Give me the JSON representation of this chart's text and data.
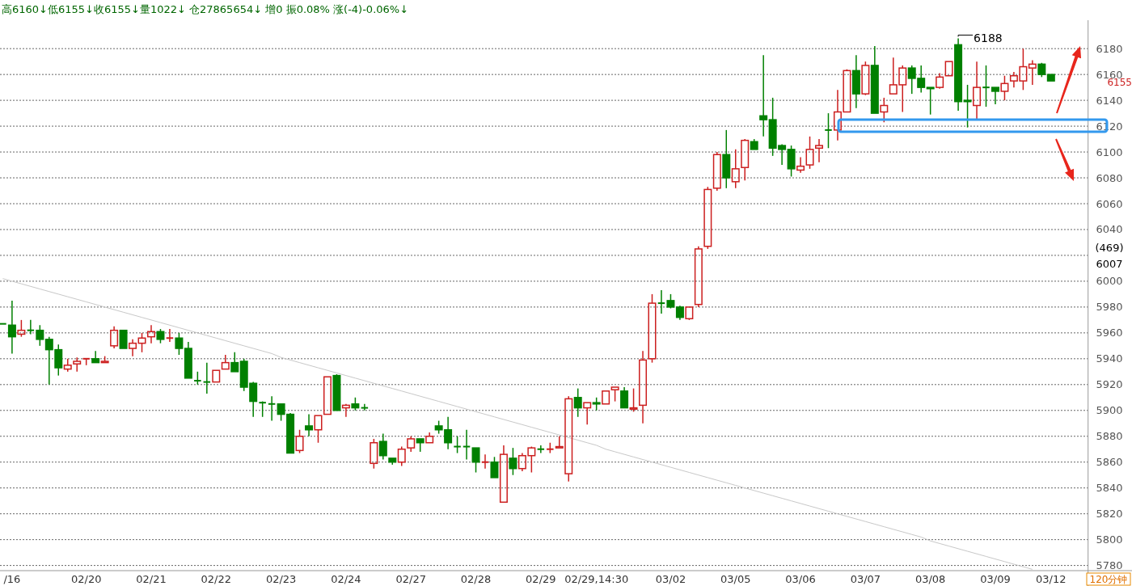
{
  "chart_data": {
    "type": "candlestick",
    "title": "高6160↓低6155↓收6155↓量1022↓ 仓27865654↓ 增0 振0.08% 涨(-4)-0.06%↓",
    "categories": [
      null,
      "/16",
      null,
      null,
      null,
      null,
      null,
      null,
      null,
      "02/20",
      null,
      null,
      null,
      null,
      null,
      null,
      "02/21",
      null,
      null,
      null,
      null,
      null,
      null,
      "02/22",
      null,
      null,
      null,
      null,
      null,
      null,
      "02/23",
      null,
      null,
      null,
      null,
      null,
      null,
      "02/24",
      null,
      null,
      null,
      null,
      null,
      null,
      "02/27",
      null,
      null,
      null,
      null,
      null,
      null,
      "02/28",
      null,
      null,
      null,
      null,
      null,
      null,
      "02/29",
      null,
      null,
      null,
      null,
      null,
      "02/29,14:30",
      null,
      null,
      null,
      null,
      null,
      null,
      null,
      "03/02",
      null,
      null,
      null,
      null,
      null,
      null,
      "03/05",
      null,
      null,
      null,
      null,
      null,
      null,
      "03/06",
      null,
      null,
      null,
      null,
      null,
      null,
      "03/07",
      null,
      null,
      null,
      null,
      null,
      null,
      "03/08",
      null,
      null,
      null,
      null,
      null,
      null,
      "03/09",
      null,
      null,
      null,
      null,
      null,
      "03/12"
    ],
    "ohlc": [
      [
        5967,
        5967,
        5967,
        5967
      ],
      [
        5966,
        5985,
        5944,
        5957
      ],
      [
        5959,
        5970,
        5957,
        5962
      ],
      [
        5962,
        5970,
        5959,
        5962
      ],
      [
        5962,
        5966,
        5950,
        5955
      ],
      [
        5955,
        5957,
        5920,
        5947
      ],
      [
        5947,
        5951,
        5927,
        5933
      ],
      [
        5932,
        5940,
        5930,
        5935
      ],
      [
        5936,
        5941,
        5930,
        5938
      ],
      [
        5940,
        5940,
        5935,
        5940
      ],
      [
        5940,
        5946,
        5937,
        5937
      ],
      [
        5937,
        5942,
        5937,
        5938
      ],
      [
        5950,
        5965,
        5948,
        5962
      ],
      [
        5962,
        5962,
        5948,
        5948
      ],
      [
        5948,
        5955,
        5942,
        5952
      ],
      [
        5952,
        5960,
        5945,
        5956
      ],
      [
        5957,
        5966,
        5952,
        5961
      ],
      [
        5961,
        5963,
        5952,
        5955
      ],
      [
        5956,
        5963,
        5953,
        5956
      ],
      [
        5956,
        5960,
        5943,
        5948
      ],
      [
        5948,
        5953,
        5925,
        5925
      ],
      [
        5923,
        5930,
        5920,
        5923
      ],
      [
        5922,
        5937,
        5913,
        5922
      ],
      [
        5922,
        5931,
        5922,
        5931
      ],
      [
        5932,
        5943,
        5932,
        5937
      ],
      [
        5937,
        5945,
        5930,
        5930
      ],
      [
        5938,
        5940,
        5915,
        5918
      ],
      [
        5921,
        5922,
        5895,
        5907
      ],
      [
        5906,
        5907,
        5895,
        5906
      ],
      [
        5905,
        5911,
        5892,
        5905
      ],
      [
        5905,
        5905,
        5892,
        5897
      ],
      [
        5897,
        5898,
        5867,
        5867
      ],
      [
        5869,
        5885,
        5867,
        5880
      ],
      [
        5888,
        5897,
        5880,
        5885
      ],
      [
        5885,
        5896,
        5875,
        5896
      ],
      [
        5897,
        5926,
        5897,
        5926
      ],
      [
        5927,
        5928,
        5900,
        5900
      ],
      [
        5902,
        5905,
        5895,
        5904
      ],
      [
        5905,
        5910,
        5900,
        5902
      ],
      [
        5902,
        5905,
        5900,
        5902
      ],
      [
        5859,
        5878,
        5855,
        5875
      ],
      [
        5876,
        5882,
        5862,
        5865
      ],
      [
        5863,
        5863,
        5858,
        5860
      ],
      [
        5860,
        5872,
        5857,
        5870
      ],
      [
        5871,
        5880,
        5868,
        5878
      ],
      [
        5878,
        5878,
        5868,
        5875
      ],
      [
        5875,
        5883,
        5875,
        5880
      ],
      [
        5888,
        5892,
        5882,
        5885
      ],
      [
        5885,
        5895,
        5870,
        5875
      ],
      [
        5872,
        5880,
        5867,
        5872
      ],
      [
        5872,
        5885,
        5862,
        5872
      ],
      [
        5871,
        5871,
        5852,
        5860
      ],
      [
        5860,
        5866,
        5855,
        5860
      ],
      [
        5860,
        5864,
        5848,
        5848
      ],
      [
        5829,
        5873,
        5829,
        5866
      ],
      [
        5863,
        5871,
        5850,
        5855
      ],
      [
        5855,
        5867,
        5853,
        5865
      ],
      [
        5865,
        5872,
        5852,
        5871
      ],
      [
        5870,
        5873,
        5867,
        5870
      ],
      [
        5870,
        5875,
        5867,
        5870
      ],
      [
        5871,
        5880,
        5871,
        5872
      ],
      [
        5851,
        5911,
        5845,
        5909
      ],
      [
        5910,
        5917,
        5895,
        5902
      ],
      [
        5902,
        5906,
        5889,
        5906
      ],
      [
        5906,
        5910,
        5900,
        5905
      ],
      [
        5905,
        5915,
        5905,
        5915
      ],
      [
        5916,
        5918,
        5907,
        5918
      ],
      [
        5915,
        5918,
        5902,
        5902
      ],
      [
        5901,
        5917,
        5899,
        5902
      ],
      [
        5904,
        5946,
        5890,
        5939
      ],
      [
        5940,
        5990,
        5937,
        5983
      ],
      [
        5983,
        5993,
        5975,
        5983
      ],
      [
        5985,
        5990,
        5979,
        5980
      ],
      [
        5980,
        5981,
        5970,
        5972
      ],
      [
        5971,
        5980,
        5970,
        5980
      ],
      [
        5982,
        6027,
        5980,
        6025
      ],
      [
        6027,
        6073,
        6025,
        6071
      ],
      [
        6072,
        6100,
        6070,
        6098
      ],
      [
        6098,
        6117,
        6072,
        6080
      ],
      [
        6077,
        6102,
        6072,
        6087
      ],
      [
        6088,
        6110,
        6078,
        6109
      ],
      [
        6108,
        6110,
        6102,
        6102
      ],
      [
        6128,
        6175,
        6112,
        6125
      ],
      [
        6125,
        6142,
        6097,
        6103
      ],
      [
        6105,
        6106,
        6090,
        6102
      ],
      [
        6102,
        6105,
        6081,
        6087
      ],
      [
        6086,
        6096,
        6084,
        6089
      ],
      [
        6090,
        6112,
        6087,
        6102
      ],
      [
        6103,
        6110,
        6092,
        6105
      ],
      [
        6117,
        6130,
        6103,
        6117
      ],
      [
        6117,
        6148,
        6109,
        6131
      ],
      [
        6131,
        6164,
        6131,
        6163
      ],
      [
        6163,
        6175,
        6134,
        6145
      ],
      [
        6145,
        6170,
        6144,
        6167
      ],
      [
        6167,
        6182,
        6130,
        6130
      ],
      [
        6131,
        6142,
        6123,
        6136
      ],
      [
        6145,
        6173,
        6145,
        6152
      ],
      [
        6152,
        6167,
        6131,
        6165
      ],
      [
        6165,
        6167,
        6145,
        6157
      ],
      [
        6157,
        6167,
        6146,
        6150
      ],
      [
        6150,
        6150,
        6129,
        6149
      ],
      [
        6150,
        6161,
        6149,
        6158
      ],
      [
        6159,
        6170,
        6159,
        6170
      ],
      [
        6183,
        6188,
        6132,
        6139
      ],
      [
        6140,
        6152,
        6119,
        6139
      ],
      [
        6136,
        6170,
        6125,
        6150
      ],
      [
        6150,
        6167,
        6135,
        6150
      ],
      [
        6150,
        6150,
        6137,
        6147
      ],
      [
        6147,
        6159,
        6140,
        6153
      ],
      [
        6155,
        6162,
        6150,
        6159
      ],
      [
        6155,
        6180,
        6148,
        6166
      ],
      [
        6165,
        6171,
        6152,
        6168
      ],
      [
        6168,
        6169,
        6158,
        6160
      ],
      [
        6160,
        6160,
        6155,
        6155
      ]
    ],
    "colors": [
      "#008000",
      "#008000",
      "#cc1f1f",
      "#008000",
      "#008000",
      "#008000",
      "#008000",
      "#cc1f1f",
      "#cc1f1f",
      "#cc1f1f",
      "#008000",
      "#cc1f1f",
      "#cc1f1f",
      "#008000",
      "#cc1f1f",
      "#cc1f1f",
      "#cc1f1f",
      "#008000",
      "#cc1f1f",
      "#008000",
      "#008000",
      "#008000",
      "#008000",
      "#cc1f1f",
      "#cc1f1f",
      "#008000",
      "#008000",
      "#008000",
      "#008000",
      "#008000",
      "#008000",
      "#008000",
      "#cc1f1f",
      "#008000",
      "#cc1f1f",
      "#cc1f1f",
      "#008000",
      "#cc1f1f",
      "#008000",
      "#008000",
      "#cc1f1f",
      "#008000",
      "#008000",
      "#cc1f1f",
      "#cc1f1f",
      "#008000",
      "#cc1f1f",
      "#008000",
      "#008000",
      "#008000",
      "#008000",
      "#008000",
      "#cc1f1f",
      "#008000",
      "#cc1f1f",
      "#008000",
      "#cc1f1f",
      "#cc1f1f",
      "#008000",
      "#cc1f1f",
      "#cc1f1f",
      "#cc1f1f",
      "#008000",
      "#cc1f1f",
      "#008000",
      "#cc1f1f",
      "#cc1f1f",
      "#008000",
      "#cc1f1f",
      "#cc1f1f",
      "#cc1f1f",
      "#008000",
      "#008000",
      "#008000",
      "#cc1f1f",
      "#cc1f1f",
      "#cc1f1f",
      "#cc1f1f",
      "#008000",
      "#cc1f1f",
      "#cc1f1f",
      "#008000",
      "#008000",
      "#008000",
      "#008000",
      "#008000",
      "#cc1f1f",
      "#cc1f1f",
      "#cc1f1f",
      "#008000",
      "#cc1f1f",
      "#cc1f1f",
      "#008000",
      "#cc1f1f",
      "#008000",
      "#cc1f1f",
      "#cc1f1f",
      "#cc1f1f",
      "#008000",
      "#008000",
      "#008000",
      "#cc1f1f",
      "#cc1f1f",
      "#008000",
      "#008000",
      "#cc1f1f",
      "#008000",
      "#008000",
      "#cc1f1f",
      "#cc1f1f",
      "#cc1f1f",
      "#cc1f1f",
      "#008000",
      "#008000"
    ],
    "series": [
      {
        "type": "line",
        "color": "#c8c8c8",
        "values": [
          6002,
          6000,
          5998,
          5996,
          5994,
          5992,
          5990,
          5988,
          5986,
          5984,
          5982,
          5980,
          5978,
          5976,
          5974,
          5972,
          5970,
          5968,
          5966,
          5964,
          5962,
          5960,
          5958,
          5956,
          5954,
          5952,
          5950,
          5948,
          5946,
          5944,
          5941,
          5939,
          5937,
          5935,
          5933,
          5931,
          5929,
          5927,
          5925,
          5923,
          5921,
          5919,
          5917,
          5915,
          5913,
          5911,
          5909,
          5907,
          5905,
          5903,
          5901,
          5899,
          5897,
          5895,
          5893,
          5891,
          5889,
          5887,
          5885,
          5883,
          5881,
          5879,
          5877,
          5875,
          5873,
          5870,
          5868,
          5866,
          5864,
          5862,
          5860,
          5858,
          5856,
          5854,
          5852,
          5850,
          5848,
          5846,
          5844,
          5842,
          5840,
          5838,
          5836,
          5834,
          5832,
          5830,
          5828,
          5826,
          5824,
          5822,
          5820,
          5818,
          5816,
          5814,
          5812,
          5810,
          5808,
          5806,
          5804,
          5802,
          5799,
          5797,
          5795,
          5793,
          5791,
          5789,
          5787,
          5785,
          5783,
          5781,
          5779,
          5777,
          null,
          null
        ]
      }
    ],
    "ylim": [
      5776,
      6202
    ],
    "yticks": [
      6180,
      6160,
      6140,
      6120,
      6100,
      6080,
      6060,
      6040,
      {
        "value": 6020,
        "label": null
      },
      6000,
      5980,
      5960,
      5940,
      5920,
      5900,
      5880,
      5860,
      5840,
      5820,
      5800,
      5780
    ],
    "grid": "y",
    "annotations": [
      "6188",
      "6155",
      "(469)",
      "6007",
      "120分钟"
    ]
  }
}
